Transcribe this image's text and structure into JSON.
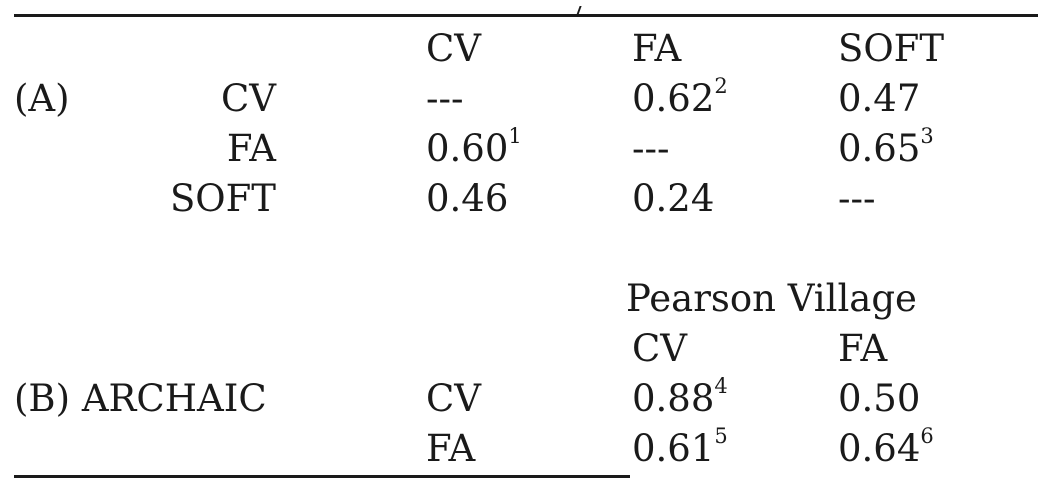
{
  "section_a": {
    "label": "(A)",
    "col_headers": [
      "CV",
      "FA",
      "SOFT"
    ],
    "rows": [
      {
        "label": "CV",
        "cells": [
          {
            "v": "---"
          },
          {
            "v": "0.62",
            "sup": "2"
          },
          {
            "v": "0.47"
          }
        ]
      },
      {
        "label": "FA",
        "cells": [
          {
            "v": "0.60",
            "sup": "1"
          },
          {
            "v": "---"
          },
          {
            "v": "0.65",
            "sup": "3"
          }
        ]
      },
      {
        "label": "SOFT",
        "cells": [
          {
            "v": "0.46"
          },
          {
            "v": "0.24"
          },
          {
            "v": "---"
          }
        ]
      }
    ]
  },
  "section_b": {
    "label": "(B) ARCHAIC",
    "group_header": "Pearson Village",
    "col_headers": [
      "CV",
      "FA"
    ],
    "rows": [
      {
        "label": "CV",
        "cells": [
          {
            "v": "0.88",
            "sup": "4"
          },
          {
            "v": "0.50"
          }
        ]
      },
      {
        "label": "FA",
        "cells": [
          {
            "v": "0.61",
            "sup": "5"
          },
          {
            "v": "0.64",
            "sup": "6"
          }
        ]
      }
    ]
  }
}
